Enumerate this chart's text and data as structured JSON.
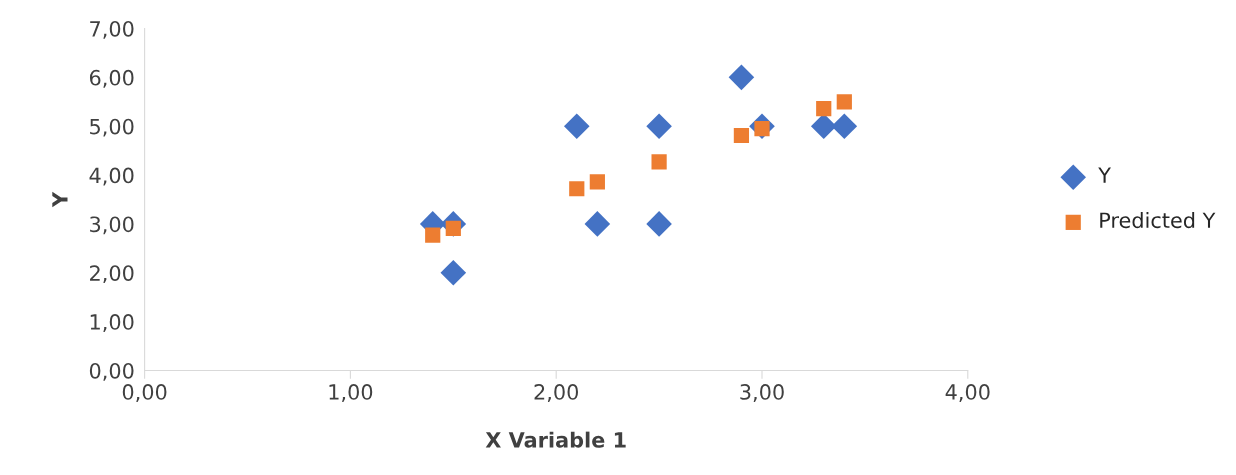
{
  "chart_data": {
    "type": "scatter",
    "xlabel": "X Variable 1",
    "ylabel": "Y",
    "legend": "right",
    "grid": false,
    "xlim": [
      0,
      4
    ],
    "xticks": [
      {
        "value": 0,
        "label": "0,00"
      },
      {
        "value": 1,
        "label": "1,00"
      },
      {
        "value": 2,
        "label": "2,00"
      },
      {
        "value": 3,
        "label": "3,00"
      },
      {
        "value": 4,
        "label": "4,00"
      }
    ],
    "ylim": [
      0,
      7
    ],
    "yticks": [
      {
        "value": 0,
        "label": "0,00"
      },
      {
        "value": 1,
        "label": "1,00"
      },
      {
        "value": 2,
        "label": "2,00"
      },
      {
        "value": 3,
        "label": "3,00"
      },
      {
        "value": 4,
        "label": "4,00"
      },
      {
        "value": 5,
        "label": "5,00"
      },
      {
        "value": 6,
        "label": "6,00"
      },
      {
        "value": 7,
        "label": "7,00"
      }
    ],
    "series": [
      {
        "name": "Y",
        "color": "#4472c4",
        "marker": "diamond",
        "x": [
          1.4,
          1.5,
          1.5,
          2.1,
          2.2,
          2.5,
          2.5,
          2.9,
          3.0,
          3.3,
          3.4
        ],
        "values": [
          3,
          3,
          2,
          5,
          3,
          5,
          3,
          6,
          5,
          5,
          5
        ]
      },
      {
        "name": "Predicted Y",
        "color": "#ed7d31",
        "marker": "square",
        "x": [
          1.4,
          1.5,
          2.1,
          2.2,
          2.5,
          2.9,
          3.0,
          3.3,
          3.4
        ],
        "values": [
          2.77,
          2.91,
          3.72,
          3.86,
          4.27,
          4.81,
          4.95,
          5.36,
          5.5
        ]
      }
    ]
  }
}
